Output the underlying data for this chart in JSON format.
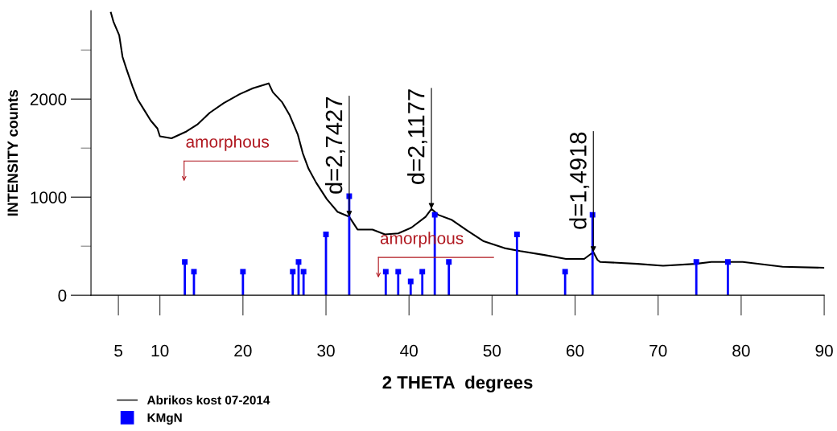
{
  "chart_data": {
    "type": "line",
    "xlabel": "2 THETA  degrees",
    "ylabel": "INTENSITY counts",
    "xlim": [
      1.7,
      90
    ],
    "xticks": [
      5,
      10,
      20,
      30,
      40,
      50,
      60,
      70,
      80,
      90
    ],
    "ylim": [
      0,
      2900
    ],
    "yticks": [
      0,
      {
        "value": 500,
        "label": null
      },
      1000,
      {
        "value": 1500,
        "label": null
      },
      2000,
      {
        "value": 2500,
        "label": null
      }
    ],
    "grid": false,
    "legend": "bottom left",
    "series": [
      {
        "name": "Abrikos kost 07-2014",
        "color": "#000000",
        "marker": "none",
        "line_style": "solid",
        "x": [
          4.1,
          4.4,
          5.1,
          5.5,
          6.0,
          6.7,
          7.3,
          8.1,
          8.9,
          9.7,
          10.0,
          11.4,
          13.2,
          14.5,
          16.0,
          17.7,
          19.6,
          21.2,
          23.1,
          23.6,
          24.7,
          25.6,
          26.6,
          27.2,
          27.9,
          28.8,
          30.1,
          31.4,
          32.8,
          33.8,
          35.6,
          37.1,
          38.7,
          40.3,
          42.0,
          42.7,
          43.5,
          45.1,
          47.0,
          49.0,
          51.5,
          53.4,
          56.3,
          58.9,
          61.1,
          62.2,
          62.7,
          63.0,
          67.5,
          70.6,
          74.5,
          76.4,
          80.2,
          85.0,
          90.0
        ],
        "values": [
          2880,
          2790,
          2650,
          2430,
          2300,
          2130,
          2000,
          1890,
          1780,
          1700,
          1620,
          1600,
          1670,
          1740,
          1860,
          1960,
          2050,
          2110,
          2160,
          2070,
          1970,
          1840,
          1640,
          1450,
          1290,
          1150,
          980,
          850,
          800,
          670,
          670,
          620,
          630,
          690,
          800,
          880,
          820,
          770,
          660,
          550,
          480,
          450,
          410,
          370,
          370,
          440,
          360,
          340,
          320,
          300,
          320,
          340,
          340,
          290,
          280
        ]
      },
      {
        "name": "KMgN",
        "type": "lollipop",
        "color": "#0000ff",
        "marker": "square",
        "x": [
          13.0,
          14.1,
          20.0,
          26.0,
          26.7,
          27.3,
          30.0,
          32.8,
          37.2,
          38.7,
          40.2,
          41.6,
          43.1,
          44.8,
          53.0,
          58.8,
          62.1,
          74.6,
          78.4
        ],
        "values": [
          340,
          240,
          240,
          240,
          340,
          240,
          620,
          1010,
          240,
          240,
          140,
          240,
          820,
          340,
          620,
          240,
          820,
          340,
          340
        ]
      }
    ],
    "annotations": [
      {
        "text": "d=2,7427",
        "x": 32.8,
        "y": 800
      },
      {
        "text": "d=2,1177",
        "x": 42.7,
        "y": 880
      },
      {
        "text": "d=1,4918",
        "x": 62.2,
        "y": 440
      },
      "amorphous",
      "amorphous"
    ]
  }
}
